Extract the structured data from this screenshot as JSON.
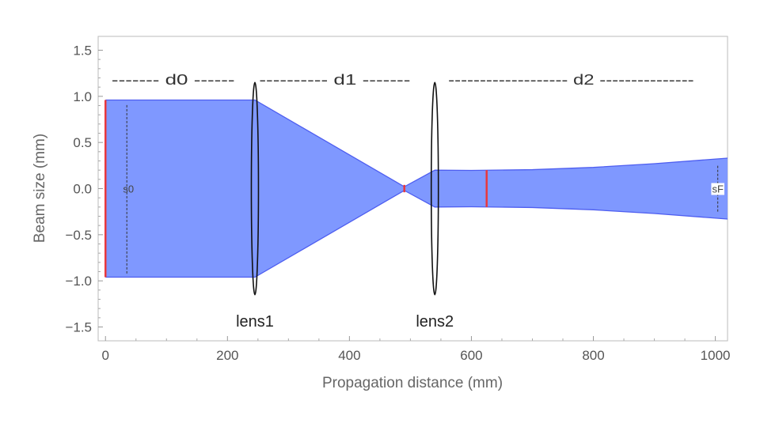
{
  "chart_data": {
    "type": "area",
    "title": "",
    "xlabel": "Propagation distance (mm)",
    "ylabel": "Beam size (mm)",
    "xlim": [
      -12,
      1020
    ],
    "ylim": [
      -1.65,
      1.65
    ],
    "x_ticks": [
      0,
      200,
      400,
      600,
      800,
      1000
    ],
    "x_tick_labels": [
      "0",
      "200",
      "400",
      "600",
      "800",
      "1000"
    ],
    "y_ticks": [
      -1.5,
      -1.0,
      -0.5,
      0.0,
      0.5,
      1.0,
      1.5
    ],
    "y_tick_labels": [
      "−1.5",
      "−1.0",
      "−0.5",
      "0.0",
      "0.5",
      "1.0",
      "1.5"
    ],
    "grid": false,
    "fill_color": "#7f98ff",
    "edge_color": "#4e5ef0",
    "marker_color": "#e8383d",
    "series": [
      {
        "x": [
          0,
          245,
          490,
          540,
          600,
          700,
          800,
          900,
          1020
        ],
        "upper": [
          0.96,
          0.96,
          0.02,
          0.2,
          0.197,
          0.205,
          0.23,
          0.27,
          0.33
        ],
        "lower": [
          -0.96,
          -0.96,
          -0.02,
          -0.2,
          -0.197,
          -0.205,
          -0.23,
          -0.27,
          -0.33
        ]
      }
    ],
    "lenses": [
      {
        "x": 245,
        "half_height": 1.15,
        "label": "lens1"
      },
      {
        "x": 540,
        "half_height": 1.15,
        "label": "lens2"
      }
    ],
    "markers": [
      {
        "x": 0,
        "y0": -0.96,
        "y1": 0.96
      },
      {
        "x": 490,
        "y0": -0.04,
        "y1": 0.04
      },
      {
        "x": 625,
        "y0": -0.2,
        "y1": 0.2
      }
    ],
    "spans": [
      {
        "x0": 10,
        "x1": 212,
        "y": 1.18,
        "text": "------- d0 ------"
      },
      {
        "x0": 252,
        "x1": 500,
        "y": 1.18,
        "text": "---------- d1 -------"
      },
      {
        "x0": 562,
        "x1": 965,
        "y": 1.18,
        "text": "------------------- d2 ---------------"
      }
    ],
    "size_markers": [
      {
        "x": 35,
        "y0": -0.92,
        "y1": 0.92,
        "label": "s0",
        "label_dx": 2
      },
      {
        "x": 1004,
        "y0": -0.25,
        "y1": 0.25,
        "label": "sF",
        "label_dx": 0
      }
    ]
  }
}
